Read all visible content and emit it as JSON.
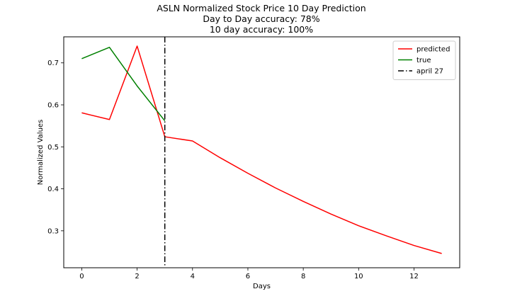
{
  "chart_data": {
    "type": "line",
    "title": [
      "ASLN Normalized Stock Price 10 Day Prediction",
      "Day to Day accuracy: 78%",
      "10 day accuracy: 100%"
    ],
    "xlabel": "Days",
    "ylabel": "Normalized Values",
    "xlim": [
      -0.65,
      13.65
    ],
    "ylim": [
      0.212,
      0.762
    ],
    "xticks": [
      0,
      2,
      4,
      6,
      8,
      10,
      12
    ],
    "yticks": [
      0.3,
      0.4,
      0.5,
      0.6,
      0.7
    ],
    "grid": false,
    "legend_position": "top-right",
    "series": [
      {
        "name": "predicted",
        "color": "#ff0000",
        "x": [
          0,
          1,
          2,
          3,
          4,
          5,
          6,
          7,
          8,
          9,
          10,
          11,
          12,
          13
        ],
        "y": [
          0.581,
          0.565,
          0.74,
          0.524,
          0.514,
          0.474,
          0.437,
          0.402,
          0.37,
          0.34,
          0.312,
          0.288,
          0.265,
          0.246
        ]
      },
      {
        "name": "true",
        "color": "#008000",
        "x": [
          0,
          1,
          2,
          3
        ],
        "y": [
          0.71,
          0.737,
          0.645,
          0.562
        ]
      }
    ],
    "vlines": [
      {
        "name": "april 27",
        "x": 3,
        "color": "#000000",
        "style": "dashdot"
      }
    ]
  }
}
